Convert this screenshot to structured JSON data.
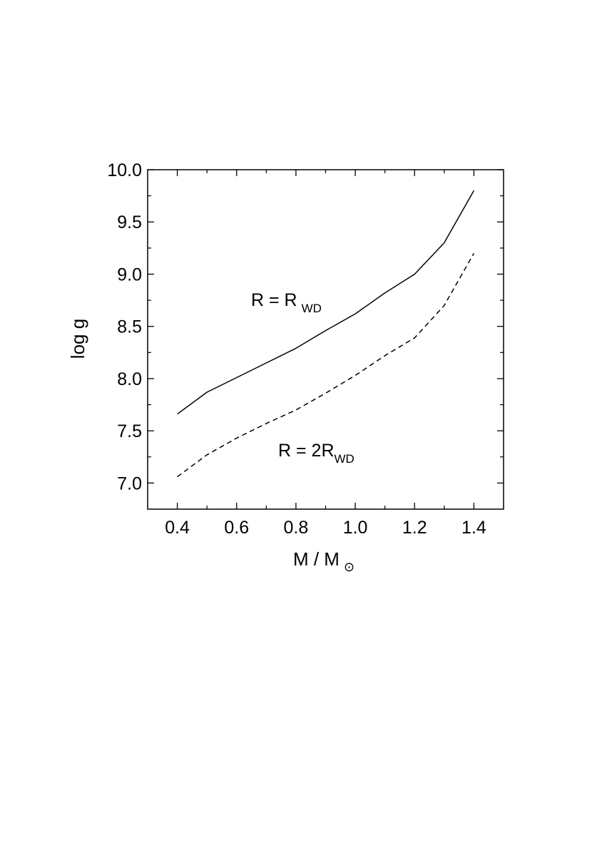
{
  "chart_data": {
    "type": "line",
    "title": "",
    "xlabel": "M / M",
    "xlabel_symbol": "⊙",
    "ylabel": "log g",
    "xlim": [
      0.3,
      1.5
    ],
    "ylim": [
      6.75,
      10.0
    ],
    "x_ticks": [
      "0.4",
      "0.6",
      "0.8",
      "1.0",
      "1.2",
      "1.4"
    ],
    "y_ticks": [
      "7.0",
      "7.5",
      "8.0",
      "8.5",
      "9.0",
      "9.5",
      "10.0"
    ],
    "grid": false,
    "legend": "none",
    "series": [
      {
        "line_style": "solid",
        "x": [
          0.4,
          0.5,
          0.6,
          0.7,
          0.8,
          0.9,
          1.0,
          1.1,
          1.2,
          1.3,
          1.4
        ],
        "y": [
          7.66,
          7.87,
          8.01,
          8.15,
          8.29,
          8.46,
          8.62,
          8.82,
          9.0,
          9.3,
          9.8
        ]
      },
      {
        "line_style": "dashed",
        "x": [
          0.4,
          0.5,
          0.6,
          0.7,
          0.8,
          0.9,
          1.0,
          1.1,
          1.2,
          1.3,
          1.4
        ],
        "y": [
          7.06,
          7.27,
          7.43,
          7.57,
          7.7,
          7.86,
          8.03,
          8.22,
          8.39,
          8.7,
          9.2
        ]
      }
    ],
    "annotations": [
      {
        "text": "R = R",
        "sub": "WD"
      },
      {
        "text": "R = 2R",
        "sub": "WD"
      }
    ]
  }
}
